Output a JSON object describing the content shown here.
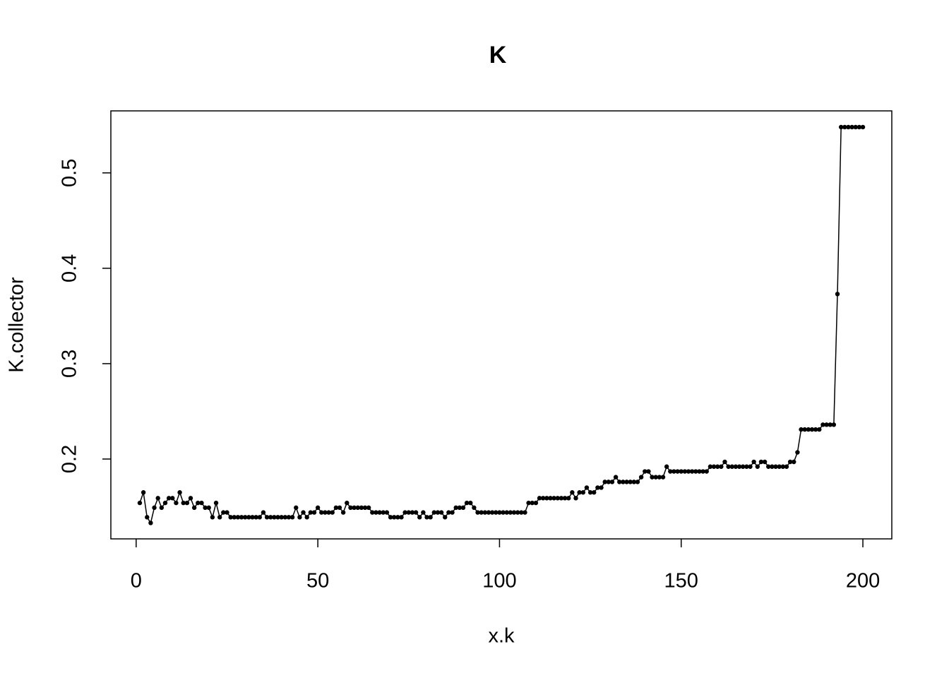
{
  "chart_data": {
    "type": "line",
    "title": "K",
    "x_label": "x.k",
    "y_label": "K.collector",
    "x": [
      1,
      2,
      3,
      4,
      5,
      6,
      7,
      8,
      9,
      10,
      11,
      12,
      13,
      14,
      15,
      16,
      17,
      18,
      19,
      20,
      21,
      22,
      23,
      24,
      25,
      26,
      27,
      28,
      29,
      30,
      31,
      32,
      33,
      34,
      35,
      36,
      37,
      38,
      39,
      40,
      41,
      42,
      43,
      44,
      45,
      46,
      47,
      48,
      49,
      50,
      51,
      52,
      53,
      54,
      55,
      56,
      57,
      58,
      59,
      60,
      61,
      62,
      63,
      64,
      65,
      66,
      67,
      68,
      69,
      70,
      71,
      72,
      73,
      74,
      75,
      76,
      77,
      78,
      79,
      80,
      81,
      82,
      83,
      84,
      85,
      86,
      87,
      88,
      89,
      90,
      91,
      92,
      93,
      94,
      95,
      96,
      97,
      98,
      99,
      100,
      101,
      102,
      103,
      104,
      105,
      106,
      107,
      108,
      109,
      110,
      111,
      112,
      113,
      114,
      115,
      116,
      117,
      118,
      119,
      120,
      121,
      122,
      123,
      124,
      125,
      126,
      127,
      128,
      129,
      130,
      131,
      132,
      133,
      134,
      135,
      136,
      137,
      138,
      139,
      140,
      141,
      142,
      143,
      144,
      145,
      146,
      147,
      148,
      149,
      150,
      151,
      152,
      153,
      154,
      155,
      156,
      157,
      158,
      159,
      160,
      161,
      162,
      163,
      164,
      165,
      166,
      167,
      168,
      169,
      170,
      171,
      172,
      173,
      174,
      175,
      176,
      177,
      178,
      179,
      180,
      181,
      182,
      183,
      184,
      185,
      186,
      187,
      188,
      189,
      190,
      191,
      192,
      193,
      194,
      195,
      196,
      197,
      198,
      199,
      200
    ],
    "series": [
      {
        "color": "#000000",
        "values": [
          0.154,
          0.165,
          0.139,
          0.133,
          0.149,
          0.159,
          0.149,
          0.154,
          0.159,
          0.159,
          0.154,
          0.165,
          0.154,
          0.154,
          0.159,
          0.149,
          0.154,
          0.154,
          0.149,
          0.149,
          0.139,
          0.154,
          0.139,
          0.144,
          0.144,
          0.139,
          0.139,
          0.139,
          0.139,
          0.139,
          0.139,
          0.139,
          0.139,
          0.139,
          0.144,
          0.139,
          0.139,
          0.139,
          0.139,
          0.139,
          0.139,
          0.139,
          0.139,
          0.149,
          0.139,
          0.144,
          0.139,
          0.144,
          0.144,
          0.149,
          0.144,
          0.144,
          0.144,
          0.144,
          0.149,
          0.149,
          0.144,
          0.154,
          0.149,
          0.149,
          0.149,
          0.149,
          0.149,
          0.149,
          0.144,
          0.144,
          0.144,
          0.144,
          0.144,
          0.139,
          0.139,
          0.139,
          0.139,
          0.144,
          0.144,
          0.144,
          0.144,
          0.139,
          0.144,
          0.139,
          0.139,
          0.144,
          0.144,
          0.144,
          0.139,
          0.144,
          0.144,
          0.149,
          0.149,
          0.149,
          0.154,
          0.154,
          0.149,
          0.144,
          0.144,
          0.144,
          0.144,
          0.144,
          0.144,
          0.144,
          0.144,
          0.144,
          0.144,
          0.144,
          0.144,
          0.144,
          0.144,
          0.154,
          0.154,
          0.154,
          0.159,
          0.159,
          0.159,
          0.159,
          0.159,
          0.159,
          0.159,
          0.159,
          0.159,
          0.165,
          0.159,
          0.165,
          0.165,
          0.17,
          0.165,
          0.165,
          0.17,
          0.17,
          0.176,
          0.176,
          0.176,
          0.181,
          0.176,
          0.176,
          0.176,
          0.176,
          0.176,
          0.176,
          0.181,
          0.187,
          0.187,
          0.181,
          0.181,
          0.181,
          0.181,
          0.192,
          0.187,
          0.187,
          0.187,
          0.187,
          0.187,
          0.187,
          0.187,
          0.187,
          0.187,
          0.187,
          0.187,
          0.192,
          0.192,
          0.192,
          0.192,
          0.197,
          0.192,
          0.192,
          0.192,
          0.192,
          0.192,
          0.192,
          0.192,
          0.197,
          0.192,
          0.197,
          0.197,
          0.192,
          0.192,
          0.192,
          0.192,
          0.192,
          0.192,
          0.197,
          0.197,
          0.207,
          0.231,
          0.231,
          0.231,
          0.231,
          0.231,
          0.231,
          0.236,
          0.236,
          0.236,
          0.236,
          0.373,
          0.548,
          0.548,
          0.548,
          0.548,
          0.548,
          0.548,
          0.548
        ]
      }
    ],
    "xlim": [
      -6.96,
      207.96
    ],
    "ylim": [
      0.1163,
      0.565
    ],
    "xticks": [
      0,
      50,
      100,
      150,
      200
    ],
    "yticks": [
      0.2,
      0.3,
      0.4,
      0.5
    ]
  }
}
